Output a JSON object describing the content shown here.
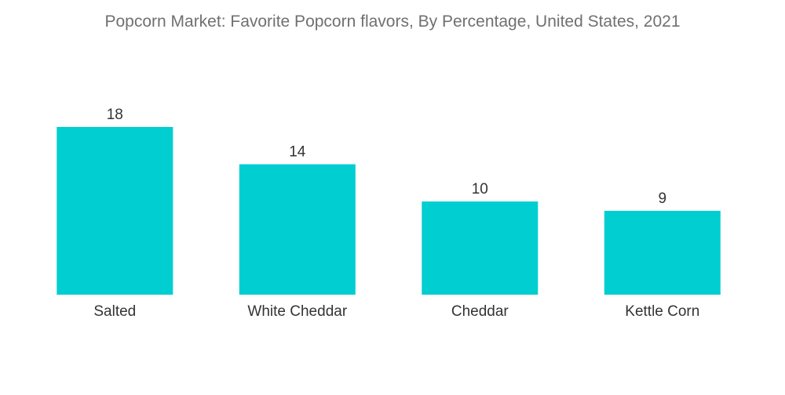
{
  "chart_data": {
    "type": "bar",
    "title": "Popcorn Market: Favorite Popcorn flavors, By Percentage, United States, 2021",
    "categories": [
      "Salted",
      "White Cheddar",
      "Cheddar",
      "Kettle Corn"
    ],
    "values": [
      18,
      14,
      10,
      9
    ],
    "xlabel": "",
    "ylabel": "",
    "ylim": [
      0,
      18
    ],
    "grid": false,
    "legend": "none",
    "colors": {
      "bar": "#00CED1"
    }
  }
}
